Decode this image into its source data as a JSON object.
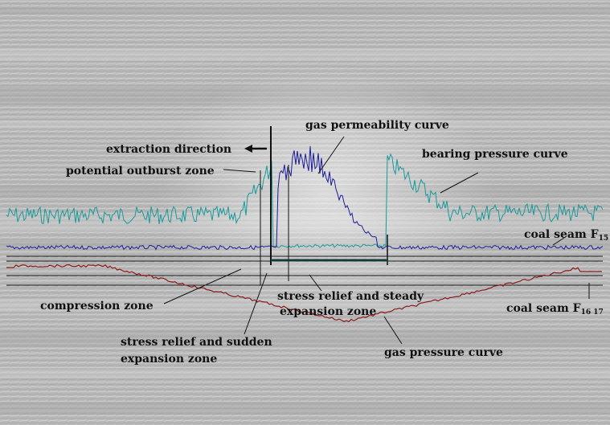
{
  "labels": {
    "gas_permeability": "gas permeability curve",
    "extraction_direction": "extraction direction",
    "bearing_pressure": "bearing pressure curve",
    "potential_outburst": "potential outburst zone",
    "coal_seam_top": "coal seam F",
    "coal_seam_top_sub": "15",
    "compression_zone": "compression zone",
    "steady_line1": "stress relief and steady",
    "steady_line2": "expansion    zone",
    "coal_seam_bottom": "coal seam F",
    "coal_seam_bottom_sub": "16   17",
    "sudden_line1": "stress relief  and  sudden",
    "sudden_line2": "expansion zone",
    "gas_pressure": "gas pressure curve"
  },
  "colors": {
    "bearing_pressure_curve": "#1a9a9a",
    "gas_permeability_curve": "#1c1c9c",
    "gas_pressure_curve": "#8b1a1a",
    "seam_lines": "#111111",
    "background": "#b9b9b9"
  }
}
